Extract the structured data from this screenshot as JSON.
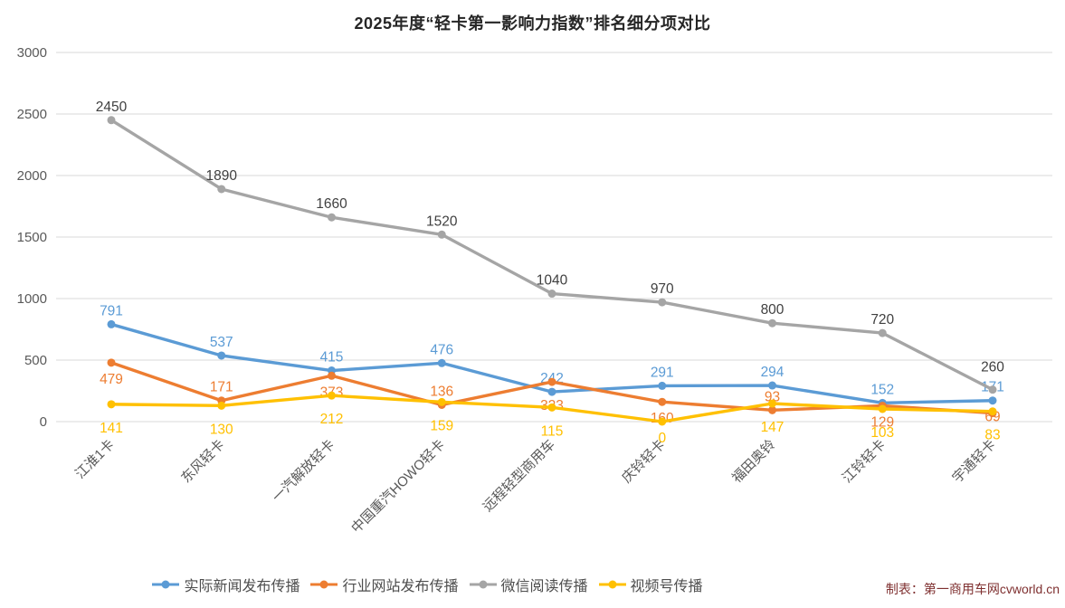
{
  "title": "2025年度“轻卡第一影响力指数”排名细分项对比",
  "credit": "制表：第一商用车网cvworld.cn",
  "colors": {
    "grid": "#d9d9d9",
    "axis_text": "#595959",
    "title_text": "#262626",
    "legend_text": "#4d4d4d",
    "credit_text": "#7f3030"
  },
  "chart_data": {
    "type": "line",
    "title": "2025年度“轻卡第一影响力指数”排名细分项对比",
    "categories": [
      "江淮1卡",
      "东风轻卡",
      "一汽解放轻卡",
      "中国重汽HOWO轻卡",
      "远程轻型商用车",
      "庆铃轻卡",
      "福田奥铃",
      "江铃轻卡",
      "宇通轻卡"
    ],
    "series": [
      {
        "name": "实际新闻发布传播",
        "color": "#5B9BD5",
        "values": [
          791,
          537,
          415,
          476,
          242,
          291,
          294,
          152,
          171
        ],
        "label_pos": [
          "above",
          "above",
          "above",
          "above",
          "above",
          "above",
          "above",
          "above",
          "above"
        ]
      },
      {
        "name": "行业网站发布传播",
        "color": "#ED7D31",
        "values": [
          479,
          171,
          373,
          136,
          323,
          160,
          93,
          129,
          69
        ],
        "label_pos": [
          "below",
          "above",
          "below",
          "above",
          "far",
          "below",
          "above",
          "below",
          "mid"
        ]
      },
      {
        "name": "微信阅读传播",
        "color": "#A5A5A5",
        "label_color": "#404040",
        "values": [
          2450,
          1890,
          1660,
          1520,
          1040,
          970,
          800,
          720,
          260
        ],
        "label_pos": [
          "above",
          "above",
          "above",
          "above",
          "above",
          "above",
          "above",
          "above",
          "high"
        ]
      },
      {
        "name": "视频号传播",
        "color": "#FFC000",
        "values": [
          141,
          130,
          212,
          159,
          115,
          0,
          147,
          103,
          83
        ],
        "label_pos": [
          "far",
          "far",
          "far",
          "far",
          "far",
          "below",
          "far",
          "far",
          "far"
        ]
      }
    ],
    "xlabel": "",
    "ylabel": "",
    "ylim": [
      0,
      3000
    ],
    "yticks": [
      0,
      500,
      1000,
      1500,
      2000,
      2500,
      3000
    ],
    "grid": true,
    "legend_position": "bottom"
  }
}
